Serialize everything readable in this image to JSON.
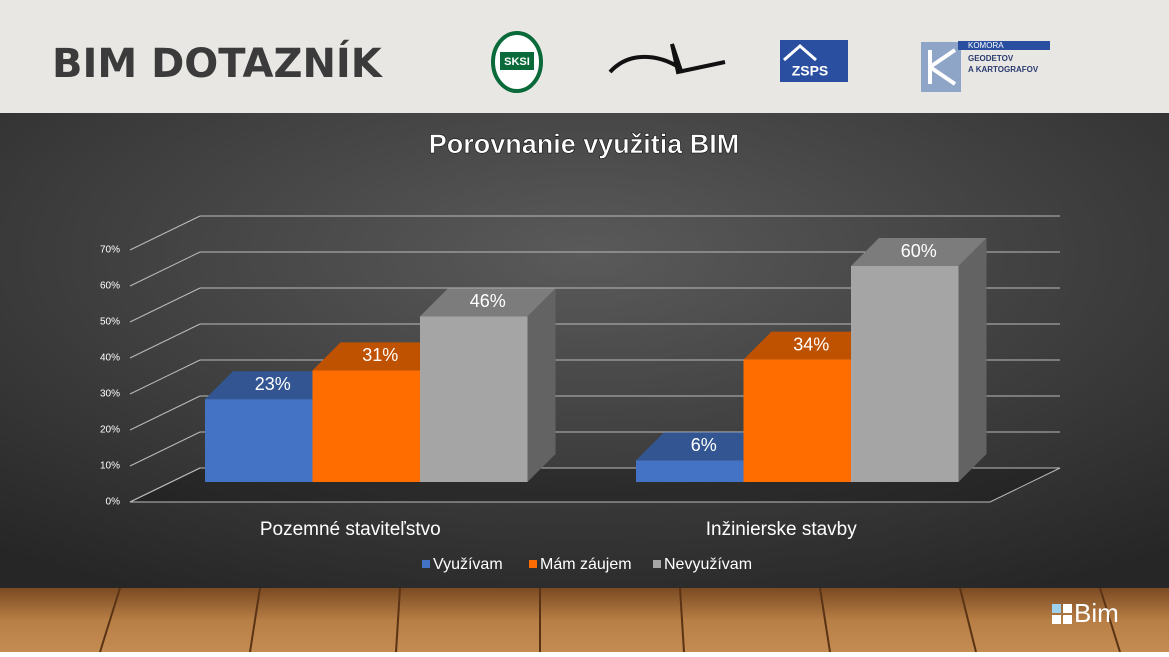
{
  "header": {
    "title": "BIM DOTAZNÍK"
  },
  "logos": {
    "sksi": "SKSI",
    "zsps": "ZSPS",
    "komora": [
      "KOMORA",
      "GEODETOV",
      "A KARTOGRAFOV"
    ],
    "bim": "Bim"
  },
  "chart_data": {
    "type": "bar",
    "title": "Porovnanie využitia BIM",
    "categories": [
      "Pozemné staviteľstvo",
      "Inžinierske stavby"
    ],
    "series": [
      {
        "name": "Využívam",
        "color": "#4472c4",
        "values": [
          23,
          6
        ],
        "value_labels": [
          "23%",
          "6%"
        ]
      },
      {
        "name": "Mám záujem",
        "color": "#ff6d00",
        "values": [
          31,
          34
        ],
        "value_labels": [
          "31%",
          "34%"
        ]
      },
      {
        "name": "Nevyužívam",
        "color": "#a5a5a5",
        "values": [
          46,
          60
        ],
        "value_labels": [
          "46%",
          "60%"
        ]
      }
    ],
    "ylim": [
      0,
      70
    ],
    "yticks": [
      {
        "value": 0,
        "label": "0%"
      },
      {
        "value": 10,
        "label": "10%"
      },
      {
        "value": 20,
        "label": "20%"
      },
      {
        "value": 30,
        "label": "30%"
      },
      {
        "value": 40,
        "label": "40%"
      },
      {
        "value": 50,
        "label": "50%"
      },
      {
        "value": 60,
        "label": "60%"
      },
      {
        "value": 70,
        "label": "70%"
      }
    ],
    "grid": true,
    "legend": "bottom"
  }
}
